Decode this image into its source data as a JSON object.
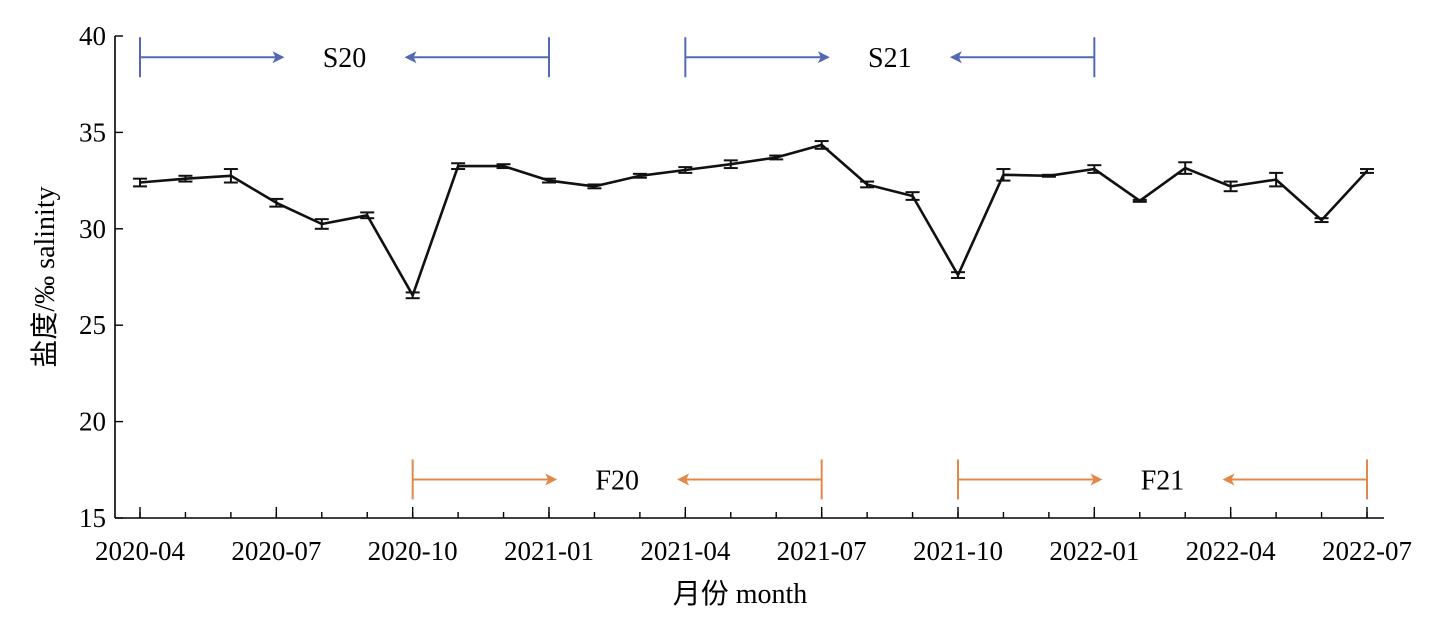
{
  "chart_data": {
    "type": "line",
    "xlabel": "月份 month",
    "ylabel": "盐度/‰ salinity",
    "ylim": [
      15,
      40
    ],
    "yticks": [
      15,
      20,
      25,
      30,
      35,
      40
    ],
    "xlim": [
      "2020-04",
      "2022-07"
    ],
    "xticks": [
      "2020-04",
      "2020-07",
      "2020-10",
      "2021-01",
      "2021-04",
      "2021-07",
      "2021-10",
      "2022-01",
      "2022-04",
      "2022-07"
    ],
    "series": [
      {
        "x": [
          "2020-04",
          "2020-05",
          "2020-06",
          "2020-07",
          "2020-08",
          "2020-09",
          "2020-10",
          "2020-11",
          "2020-12",
          "2021-01",
          "2021-02",
          "2021-03",
          "2021-04",
          "2021-05",
          "2021-06",
          "2021-07",
          "2021-08",
          "2021-09",
          "2021-10",
          "2021-11",
          "2021-12",
          "2022-01",
          "2022-02",
          "2022-03",
          "2022-04",
          "2022-05",
          "2022-06",
          "2022-07"
        ],
        "values": [
          32.4,
          32.6,
          32.75,
          31.35,
          30.25,
          30.7,
          26.55,
          33.25,
          33.25,
          32.5,
          32.2,
          32.75,
          33.05,
          33.35,
          33.7,
          34.35,
          32.3,
          31.7,
          27.6,
          32.8,
          32.75,
          33.1,
          31.45,
          33.15,
          32.2,
          32.55,
          30.45,
          33.0
        ],
        "error": [
          0.2,
          0.15,
          0.35,
          0.2,
          0.25,
          0.15,
          0.15,
          0.15,
          0.1,
          0.1,
          0.1,
          0.1,
          0.15,
          0.2,
          0.1,
          0.2,
          0.15,
          0.2,
          0.15,
          0.3,
          0.05,
          0.2,
          0.05,
          0.3,
          0.25,
          0.35,
          0.1,
          0.1
        ]
      }
    ],
    "annotations": [
      {
        "label": "S20",
        "start": "2020-04",
        "end": "2021-01",
        "y": 38.9,
        "color": "#5468b4"
      },
      {
        "label": "S21",
        "start": "2021-04",
        "end": "2022-01",
        "y": 38.9,
        "color": "#5468b4"
      },
      {
        "label": "F20",
        "start": "2020-10",
        "end": "2021-07",
        "y": 17.0,
        "color": "#e2884b"
      },
      {
        "label": "F21",
        "start": "2021-10",
        "end": "2022-07",
        "y": 17.0,
        "color": "#e2884b"
      }
    ]
  }
}
